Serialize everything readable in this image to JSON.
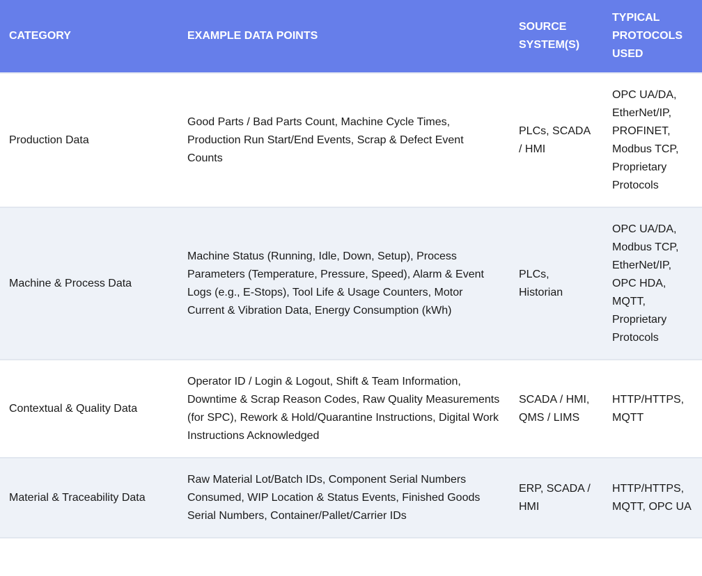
{
  "colors": {
    "header_bg": "#667eea",
    "header_text": "#ffffff",
    "alt_row_bg": "#eef2f8"
  },
  "table": {
    "headers": [
      "Category",
      "Example Data Points",
      "Source System(s)",
      "Typical Protocols Used"
    ],
    "rows": [
      [
        "Production Data",
        "Good Parts / Bad Parts Count, Machine Cycle Times, Production Run Start/End Events, Scrap & Defect Event Counts",
        "PLCs, SCADA / HMI",
        "OPC UA/DA, EtherNet/IP, PROFINET, Modbus TCP, Proprietary Protocols"
      ],
      [
        "Machine & Process Data",
        "Machine Status (Running, Idle, Down, Setup), Process Parameters (Temperature, Pressure, Speed), Alarm & Event Logs (e.g., E-Stops), Tool Life & Usage Counters, Motor Current & Vibration Data, Energy Consumption (kWh)",
        "PLCs, Historian",
        "OPC UA/DA, Modbus TCP, EtherNet/IP, OPC HDA, MQTT, Proprietary Protocols"
      ],
      [
        "Contextual & Quality Data",
        "Operator ID / Login & Logout, Shift & Team Information, Downtime & Scrap Reason Codes, Raw Quality Measurements (for SPC), Rework & Hold/Quarantine Instructions, Digital Work Instructions Acknowledged",
        "SCADA / HMI, QMS / LIMS",
        "HTTP/HTTPS, MQTT"
      ],
      [
        "Material & Traceability Data",
        "Raw Material Lot/Batch IDs, Component Serial Numbers Consumed, WIP Location & Status Events, Finished Goods Serial Numbers, Container/Pallet/Carrier IDs",
        "ERP, SCADA / HMI",
        "HTTP/HTTPS, MQTT, OPC UA"
      ]
    ]
  }
}
